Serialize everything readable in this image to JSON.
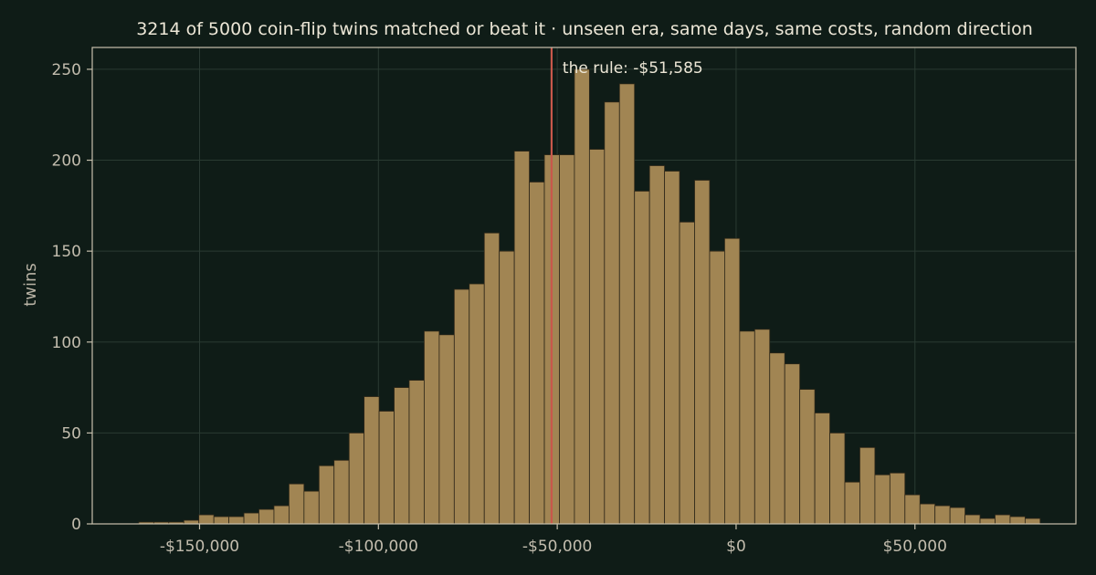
{
  "chart_data": {
    "type": "bar",
    "title": "3214 of 5000 coin-flip twins matched or beat it  ·  unseen era, same days, same costs, random direction",
    "xlabel": "",
    "ylabel": "twins",
    "xlim": [
      -180000,
      95000
    ],
    "ylim": [
      0,
      262
    ],
    "grid": true,
    "x_ticks": [
      {
        "value": -150000,
        "label": "-$150,000"
      },
      {
        "value": -100000,
        "label": "-$100,000"
      },
      {
        "value": -50000,
        "label": "-$50,000"
      },
      {
        "value": 0,
        "label": "$0"
      },
      {
        "value": 50000,
        "label": "$50,000"
      }
    ],
    "y_ticks": [
      {
        "value": 0,
        "label": "0"
      },
      {
        "value": 50,
        "label": "50"
      },
      {
        "value": 100,
        "label": "100"
      },
      {
        "value": 150,
        "label": "150"
      },
      {
        "value": 200,
        "label": "200"
      },
      {
        "value": 250,
        "label": "250"
      }
    ],
    "bins": {
      "start": -167000,
      "width": 4200,
      "counts": [
        1,
        1,
        1,
        2,
        5,
        4,
        4,
        6,
        8,
        10,
        22,
        18,
        32,
        35,
        50,
        70,
        62,
        75,
        79,
        106,
        104,
        129,
        132,
        160,
        150,
        205,
        188,
        203,
        203,
        250,
        206,
        232,
        242,
        183,
        197,
        194,
        166,
        189,
        150,
        157,
        106,
        107,
        94,
        88,
        74,
        61,
        50,
        23,
        42,
        27,
        28,
        16,
        11,
        10,
        9,
        5,
        3,
        5,
        4,
        3
      ]
    },
    "reference_line": {
      "value": -51585,
      "label": "the rule: -$51,585",
      "color": "#c8584b"
    },
    "colors": {
      "background": "#0f1c17",
      "bar_fill": "#a18553",
      "bar_edge": "#2d2618",
      "grid": "#2a3a32",
      "axes": "#c7c0ad"
    }
  }
}
